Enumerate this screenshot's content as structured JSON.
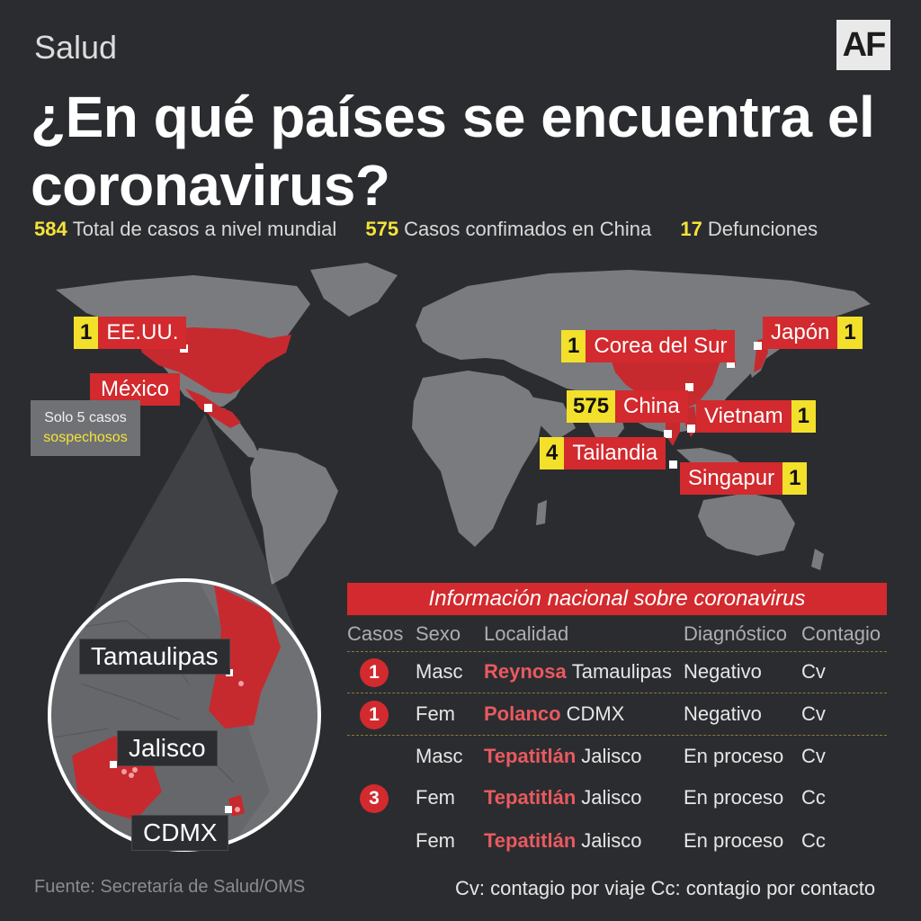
{
  "header": {
    "section": "Salud",
    "logo": "AF",
    "title": "¿En qué países se encuentra el coronavirus?"
  },
  "stats": [
    {
      "value": "584",
      "label": "Total de casos a nivel mundial"
    },
    {
      "value": "575",
      "label": "Casos confimados en China"
    },
    {
      "value": "17",
      "label": "Defunciones"
    }
  ],
  "map_labels": {
    "usa": {
      "count": "1",
      "name": "EE.UU."
    },
    "mexico": {
      "name": "México"
    },
    "korea": {
      "count": "1",
      "name": "Corea del Sur"
    },
    "japan": {
      "count": "1",
      "name": "Japón"
    },
    "china": {
      "count": "575",
      "name": "China"
    },
    "vietnam": {
      "count": "1",
      "name": "Vietnam"
    },
    "thailand": {
      "count": "4",
      "name": "Tailandia"
    },
    "singapore": {
      "count": "1",
      "name": "Singapur"
    }
  },
  "suspects": {
    "line1": "Solo 5 casos",
    "line2": "sospechosos"
  },
  "inset_labels": {
    "tamaulipas": "Tamaulipas",
    "jalisco": "Jalisco",
    "cdmx": "CDMX"
  },
  "table": {
    "title": "Información nacional sobre coronavirus",
    "headers": {
      "casos": "Casos",
      "sexo": "Sexo",
      "localidad": "Localidad",
      "diagnostico": "Diagnóstico",
      "contagio": "Contagio"
    },
    "rows": [
      {
        "casos": "1",
        "sexo": "Masc",
        "city": "Reynosa",
        "state": "Tamaulipas",
        "diagnostico": "Negativo",
        "contagio": "Cv"
      },
      {
        "casos": "1",
        "sexo": "Fem",
        "city": "Polanco",
        "state": "CDMX",
        "diagnostico": "Negativo",
        "contagio": "Cv"
      },
      {
        "casos": "",
        "sexo": "Masc",
        "city": "Tepatitlán",
        "state": "Jalisco",
        "diagnostico": "En proceso",
        "contagio": "Cv"
      },
      {
        "casos": "3",
        "sexo": "Fem",
        "city": "Tepatitlán",
        "state": "Jalisco",
        "diagnostico": "En proceso",
        "contagio": "Cc"
      },
      {
        "casos": "",
        "sexo": "Fem",
        "city": "Tepatitlán",
        "state": "Jalisco",
        "diagnostico": "En proceso",
        "contagio": "Cc"
      }
    ]
  },
  "footer": {
    "source": "Fuente: Secretaría de Salud/OMS",
    "legend": "Cv: contagio por viaje Cc: contagio por contacto"
  },
  "colors": {
    "background": "#2b2c30",
    "land": "#7a7b7e",
    "highlight": "#c62a2e",
    "count": "#f2e02b",
    "accent_text": "#f5e33a"
  }
}
